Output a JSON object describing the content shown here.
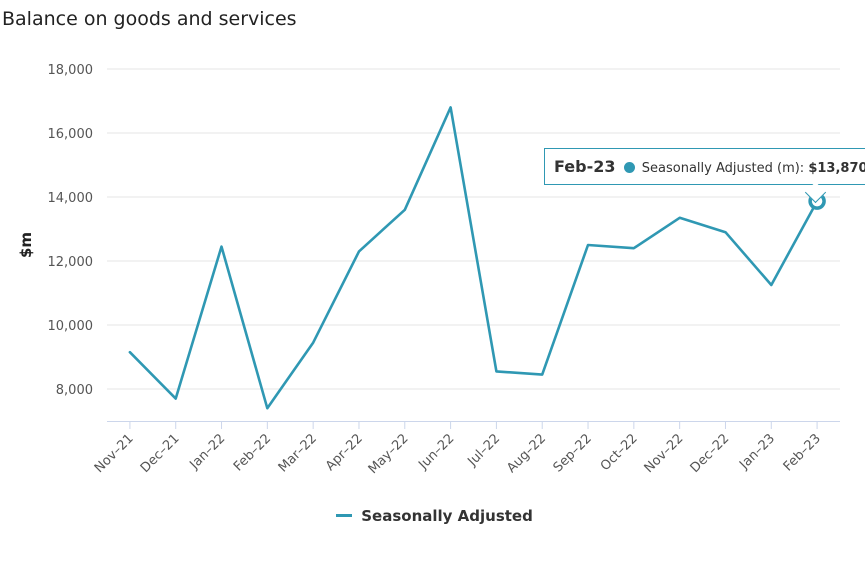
{
  "chart_data": {
    "type": "line",
    "title": "Balance on goods and services",
    "xlabel": "",
    "ylabel": "$m",
    "ylim": [
      7000,
      18000
    ],
    "yticks": [
      8000,
      10000,
      12000,
      14000,
      16000,
      18000
    ],
    "ytick_labels": [
      "8,000",
      "10,000",
      "12,000",
      "14,000",
      "16,000",
      "18,000"
    ],
    "categories": [
      "Nov–21",
      "Dec–21",
      "Jan–22",
      "Feb–22",
      "Mar–22",
      "Apr–22",
      "May–22",
      "Jun–22",
      "Jul–22",
      "Aug–22",
      "Sep–22",
      "Oct–22",
      "Nov–22",
      "Dec–22",
      "Jan–23",
      "Feb–23"
    ],
    "series": [
      {
        "name": "Seasonally Adjusted",
        "color": "#2f98b3",
        "values": [
          9150,
          7700,
          12450,
          7400,
          9450,
          12300,
          13600,
          16800,
          8550,
          8450,
          12500,
          12400,
          13350,
          12900,
          11250,
          13870
        ]
      }
    ],
    "legend_position": "bottom-center",
    "tooltip": {
      "category": "Feb-23",
      "series_label": "Seasonally Adjusted (m):",
      "value_label": "$13,870"
    }
  }
}
